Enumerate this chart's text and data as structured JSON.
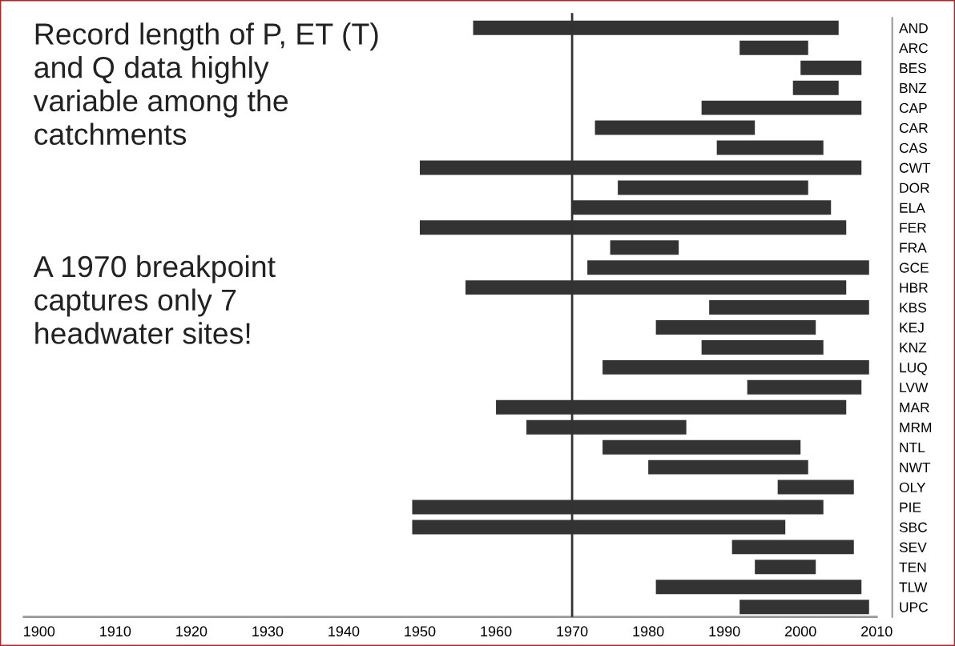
{
  "chart_data": {
    "type": "bar",
    "orientation": "horizontal",
    "categories": [
      "AND",
      "ARC",
      "BES",
      "BNZ",
      "CAP",
      "CAR",
      "CAS",
      "CWT",
      "DOR",
      "ELA",
      "FER",
      "FRA",
      "GCE",
      "HBR",
      "KBS",
      "KEJ",
      "KNZ",
      "LUQ",
      "LVW",
      "MAR",
      "MRM",
      "NTL",
      "NWT",
      "OLY",
      "PIE",
      "SBC",
      "SEV",
      "TEN",
      "TLW",
      "UPC"
    ],
    "base": [
      1957,
      1992,
      2000,
      1999,
      1987,
      1973,
      1989,
      1950,
      1976,
      1970,
      1950,
      1975,
      1972,
      1956,
      1988,
      1981,
      1987,
      1974,
      1993,
      1960,
      1964,
      1974,
      1980,
      1997,
      1949,
      1949,
      1991,
      1994,
      1981,
      1992
    ],
    "values": [
      48,
      9,
      8,
      6,
      21,
      21,
      14,
      58,
      25,
      34,
      56,
      9,
      37,
      50,
      21,
      21,
      16,
      35,
      15,
      46,
      21,
      26,
      21,
      10,
      54,
      49,
      16,
      8,
      27,
      17
    ],
    "color": "#333333",
    "xlim": [
      1898,
      2010
    ],
    "xticks": [
      1900,
      1910,
      1920,
      1930,
      1940,
      1950,
      1960,
      1970,
      1980,
      1990,
      2000,
      2010
    ],
    "ref_lines": [
      {
        "axis": "x",
        "value": 1970,
        "color": "#333333"
      }
    ],
    "grid": false,
    "annotations": [
      "Record length of P, ET (T)\nand Q data highly\nvariable among the\ncatchments",
      "A 1970 breakpoint\ncaptures only 7\nheadwater sites!"
    ]
  }
}
